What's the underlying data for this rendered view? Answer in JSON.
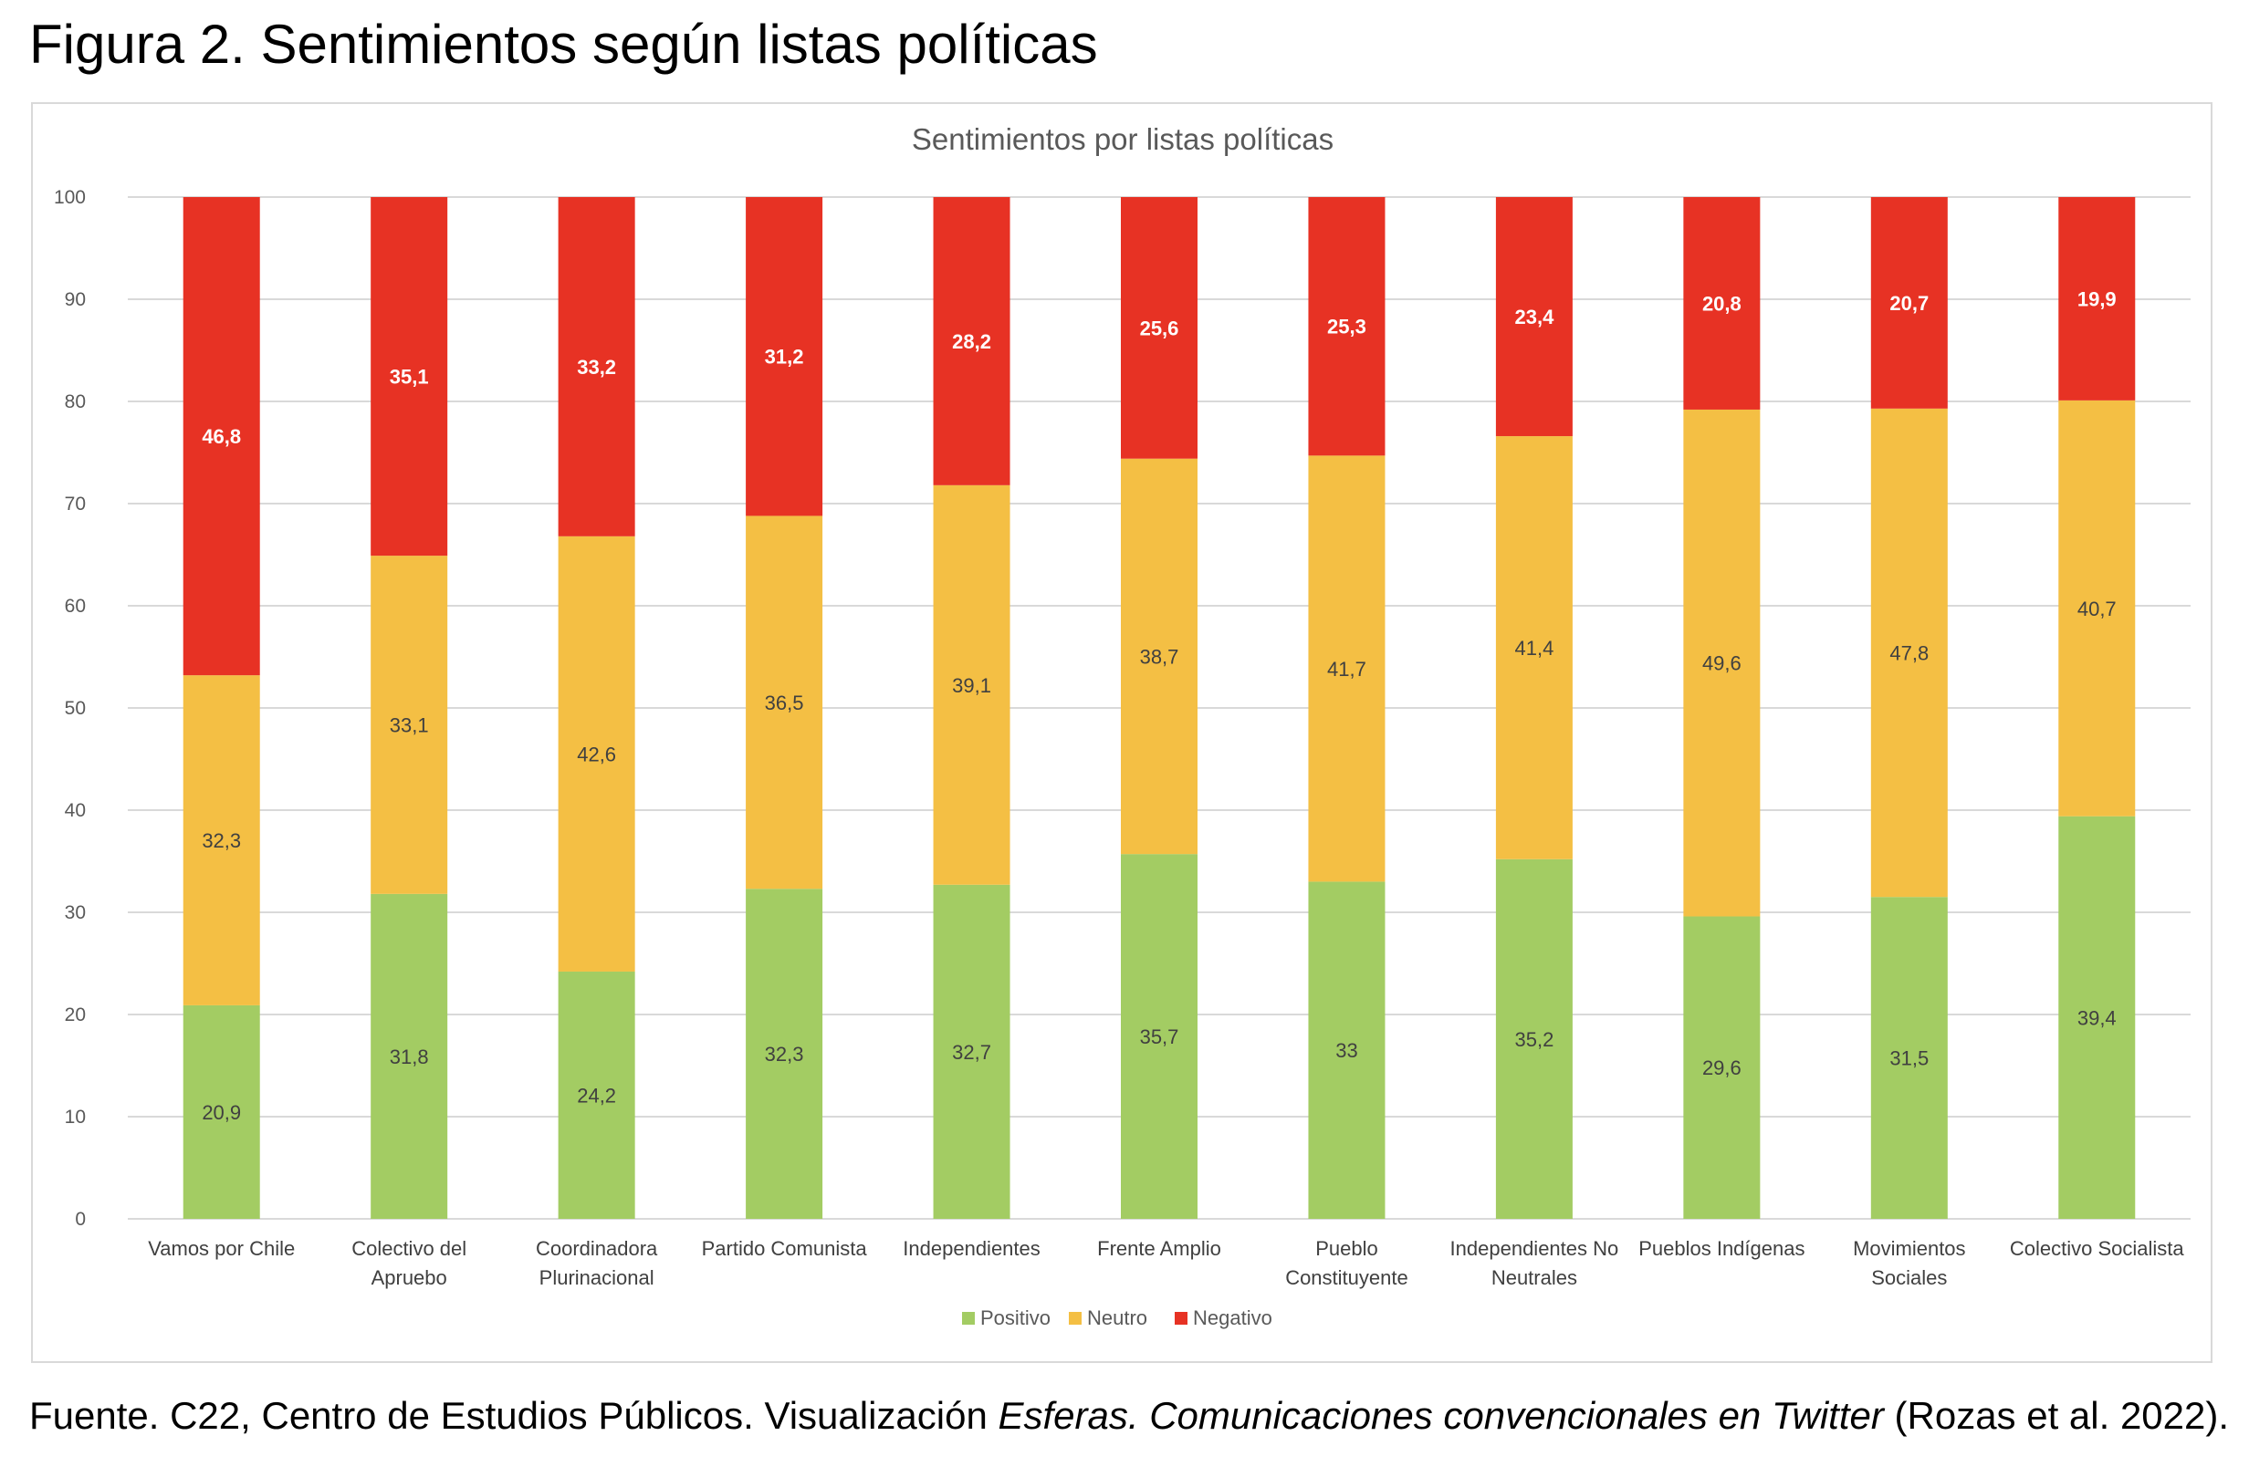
{
  "figure": {
    "title": "Figura 2. Sentimientos según listas políticas",
    "source_prefix": "Fuente. C22, Centro de Estudios Públicos. Visualización ",
    "source_italic": "Esferas. Comunicaciones convencionales en Twitter",
    "source_suffix": " (Rozas et al. 2022)."
  },
  "chart_data": {
    "type": "bar",
    "stacked": true,
    "title": "Sentimientos por listas políticas",
    "xlabel": "",
    "ylabel": "",
    "ylim": [
      0,
      100
    ],
    "yticks": [
      "0",
      "10",
      "20",
      "30",
      "40",
      "50",
      "60",
      "70",
      "80",
      "90",
      "100"
    ],
    "grid": true,
    "legend_position": "bottom",
    "categories": [
      [
        "Vamos por Chile"
      ],
      [
        "Colectivo del",
        "Apruebo"
      ],
      [
        "Coordinadora",
        "Plurinacional"
      ],
      [
        "Partido Comunista"
      ],
      [
        "Independientes"
      ],
      [
        "Frente Amplio"
      ],
      [
        "Pueblo",
        "Constituyente"
      ],
      [
        "Independientes No",
        "Neutrales"
      ],
      [
        "Pueblos Indígenas"
      ],
      [
        "Movimientos",
        "Sociales"
      ],
      [
        "Colectivo Socialista"
      ]
    ],
    "series": [
      {
        "name": "Positivo",
        "color": "#a3cc63",
        "label_color": "#404040",
        "values": [
          20.9,
          31.8,
          24.2,
          32.3,
          32.7,
          35.7,
          33,
          35.2,
          29.6,
          31.5,
          39.4
        ],
        "labels": [
          "20,9",
          "31,8",
          "24,2",
          "32,3",
          "32,7",
          "35,7",
          "33",
          "35,2",
          "29,6",
          "31,5",
          "39,4"
        ]
      },
      {
        "name": "Neutro",
        "color": "#f4bf44",
        "label_color": "#404040",
        "values": [
          32.3,
          33.1,
          42.6,
          36.5,
          39.1,
          38.7,
          41.7,
          41.4,
          49.6,
          47.8,
          40.7
        ],
        "labels": [
          "32,3",
          "33,1",
          "42,6",
          "36,5",
          "39,1",
          "38,7",
          "41,7",
          "41,4",
          "49,6",
          "47,8",
          "40,7"
        ]
      },
      {
        "name": "Negativo",
        "color": "#e73224",
        "label_color": "#ffffff",
        "values": [
          46.8,
          35.1,
          33.2,
          31.2,
          28.2,
          25.6,
          25.3,
          23.4,
          20.8,
          20.7,
          19.9
        ],
        "labels": [
          "46,8",
          "35,1",
          "33,2",
          "31,2",
          "28,2",
          "25,6",
          "25,3",
          "23,4",
          "20,8",
          "20,7",
          "19,9"
        ]
      }
    ]
  }
}
